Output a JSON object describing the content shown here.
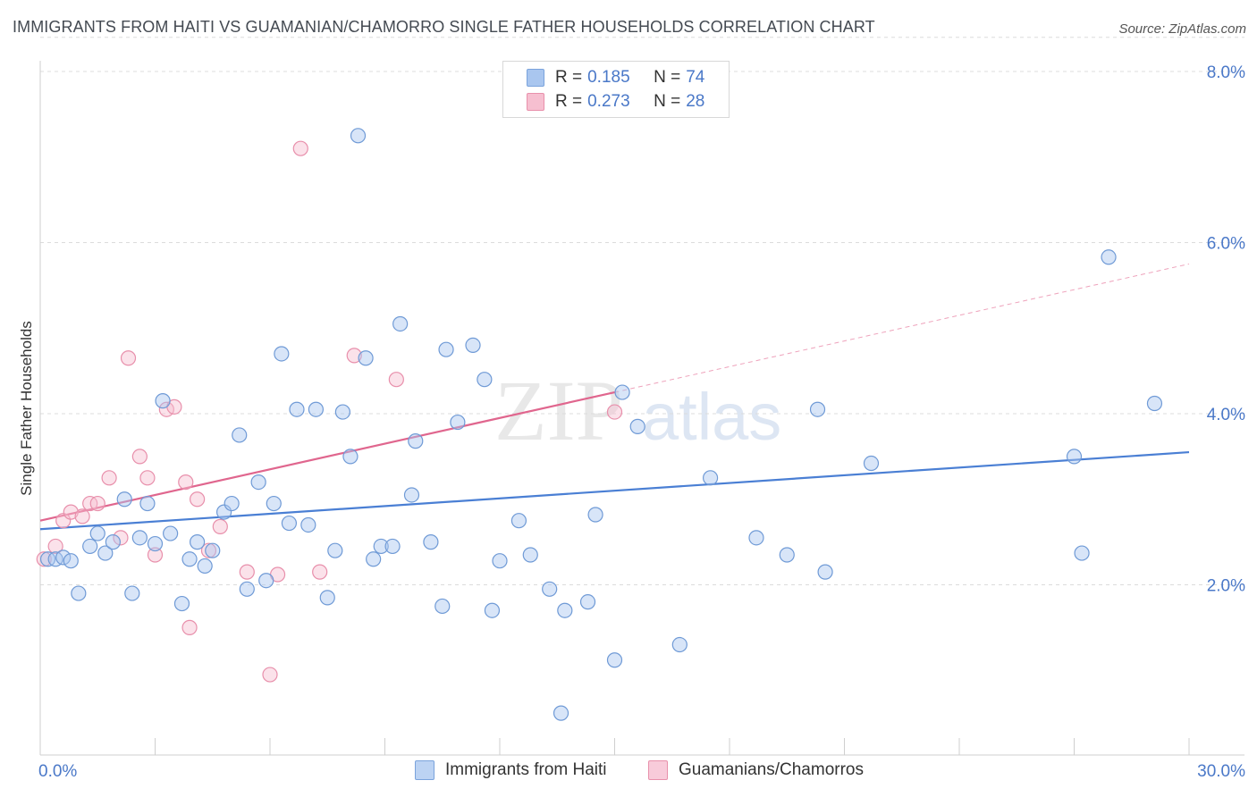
{
  "header": {
    "title": "IMMIGRANTS FROM HAITI VS GUAMANIAN/CHAMORRO SINGLE FATHER HOUSEHOLDS CORRELATION CHART",
    "source": "Source: ZipAtlas.com"
  },
  "watermark": {
    "zip": "ZIP",
    "atlas": "atlas"
  },
  "legend": {
    "rows": [
      {
        "r_label": "R =",
        "r_value": "0.185",
        "n_label": "N =",
        "n_value": "74",
        "color": "#a9c6ef",
        "border": "#7aa3dc"
      },
      {
        "r_label": "R =",
        "r_value": "0.273",
        "n_label": "N =",
        "n_value": "28",
        "color": "#f6bfd0",
        "border": "#e890ab"
      }
    ]
  },
  "bottom_legend": {
    "haiti": "Immigrants from Haiti",
    "guam": "Guamanians/Chamorros"
  },
  "chart_data": {
    "type": "scatter",
    "title": "IMMIGRANTS FROM HAITI VS GUAMANIAN/CHAMORRO SINGLE FATHER HOUSEHOLDS CORRELATION CHART",
    "xlabel": "",
    "ylabel": "Single Father Households",
    "xlim": [
      0,
      30
    ],
    "ylim": [
      0,
      8.4
    ],
    "x_tick_labels": [
      "0.0%",
      "30.0%"
    ],
    "y_tick_labels": [
      "2.0%",
      "4.0%",
      "6.0%",
      "8.0%"
    ],
    "y_ticks": [
      2,
      4,
      6,
      8
    ],
    "grid": "horizontal dashed",
    "legend_position": "top-center",
    "colors": {
      "haiti": "#4a7fd4",
      "guam": "#e0668e"
    },
    "series": [
      {
        "name": "Immigrants from Haiti",
        "trend": {
          "x": [
            0,
            30
          ],
          "y": [
            2.65,
            3.55
          ]
        },
        "points": [
          [
            0.2,
            2.3
          ],
          [
            0.4,
            2.3
          ],
          [
            0.6,
            2.32
          ],
          [
            0.8,
            2.28
          ],
          [
            1.0,
            1.9
          ],
          [
            1.3,
            2.45
          ],
          [
            1.5,
            2.6
          ],
          [
            1.7,
            2.37
          ],
          [
            1.9,
            2.5
          ],
          [
            2.2,
            3.0
          ],
          [
            2.4,
            1.9
          ],
          [
            2.6,
            2.55
          ],
          [
            2.8,
            2.95
          ],
          [
            3.0,
            2.48
          ],
          [
            3.2,
            4.15
          ],
          [
            3.4,
            2.6
          ],
          [
            3.7,
            1.78
          ],
          [
            3.9,
            2.3
          ],
          [
            4.1,
            2.5
          ],
          [
            4.3,
            2.22
          ],
          [
            4.5,
            2.4
          ],
          [
            4.8,
            2.85
          ],
          [
            5.0,
            2.95
          ],
          [
            5.2,
            3.75
          ],
          [
            5.4,
            1.95
          ],
          [
            5.7,
            3.2
          ],
          [
            5.9,
            2.05
          ],
          [
            6.1,
            2.95
          ],
          [
            6.3,
            4.7
          ],
          [
            6.5,
            2.72
          ],
          [
            6.7,
            4.05
          ],
          [
            7.0,
            2.7
          ],
          [
            7.2,
            4.05
          ],
          [
            7.5,
            1.85
          ],
          [
            7.7,
            2.4
          ],
          [
            7.9,
            4.02
          ],
          [
            8.1,
            3.5
          ],
          [
            8.3,
            7.25
          ],
          [
            8.5,
            4.65
          ],
          [
            8.7,
            2.3
          ],
          [
            8.9,
            2.45
          ],
          [
            9.2,
            2.45
          ],
          [
            9.4,
            5.05
          ],
          [
            9.7,
            3.05
          ],
          [
            9.8,
            3.68
          ],
          [
            10.2,
            2.5
          ],
          [
            10.5,
            1.75
          ],
          [
            10.6,
            4.75
          ],
          [
            10.9,
            3.9
          ],
          [
            11.3,
            4.8
          ],
          [
            11.6,
            4.4
          ],
          [
            11.8,
            1.7
          ],
          [
            12.0,
            2.28
          ],
          [
            12.5,
            2.75
          ],
          [
            12.8,
            2.35
          ],
          [
            13.3,
            1.95
          ],
          [
            13.6,
            0.5
          ],
          [
            13.7,
            1.7
          ],
          [
            14.3,
            1.8
          ],
          [
            14.5,
            2.82
          ],
          [
            15.0,
            1.12
          ],
          [
            15.2,
            4.25
          ],
          [
            15.6,
            3.85
          ],
          [
            16.7,
            1.3
          ],
          [
            17.5,
            3.25
          ],
          [
            18.7,
            2.55
          ],
          [
            19.5,
            2.35
          ],
          [
            20.3,
            4.05
          ],
          [
            20.5,
            2.15
          ],
          [
            21.7,
            3.42
          ],
          [
            27.0,
            3.5
          ],
          [
            27.2,
            2.37
          ],
          [
            27.9,
            5.83
          ],
          [
            29.1,
            4.12
          ]
        ]
      },
      {
        "name": "Guamanians/Chamorros",
        "trend": {
          "x": [
            0,
            15
          ],
          "y": [
            2.75,
            4.25
          ]
        },
        "trend_extension": {
          "x": [
            15,
            30
          ],
          "y": [
            4.25,
            5.75
          ]
        },
        "points": [
          [
            0.1,
            2.3
          ],
          [
            0.4,
            2.45
          ],
          [
            0.6,
            2.75
          ],
          [
            0.8,
            2.85
          ],
          [
            1.1,
            2.8
          ],
          [
            1.3,
            2.95
          ],
          [
            1.5,
            2.95
          ],
          [
            1.8,
            3.25
          ],
          [
            2.1,
            2.55
          ],
          [
            2.3,
            4.65
          ],
          [
            2.6,
            3.5
          ],
          [
            2.8,
            3.25
          ],
          [
            3.0,
            2.35
          ],
          [
            3.3,
            4.05
          ],
          [
            3.5,
            4.08
          ],
          [
            3.8,
            3.2
          ],
          [
            3.9,
            1.5
          ],
          [
            4.1,
            3.0
          ],
          [
            4.4,
            2.4
          ],
          [
            4.7,
            2.68
          ],
          [
            5.4,
            2.15
          ],
          [
            6.0,
            0.95
          ],
          [
            6.2,
            2.12
          ],
          [
            6.8,
            7.1
          ],
          [
            7.3,
            2.15
          ],
          [
            8.2,
            4.68
          ],
          [
            9.3,
            4.4
          ],
          [
            15.0,
            4.02
          ]
        ]
      }
    ]
  }
}
